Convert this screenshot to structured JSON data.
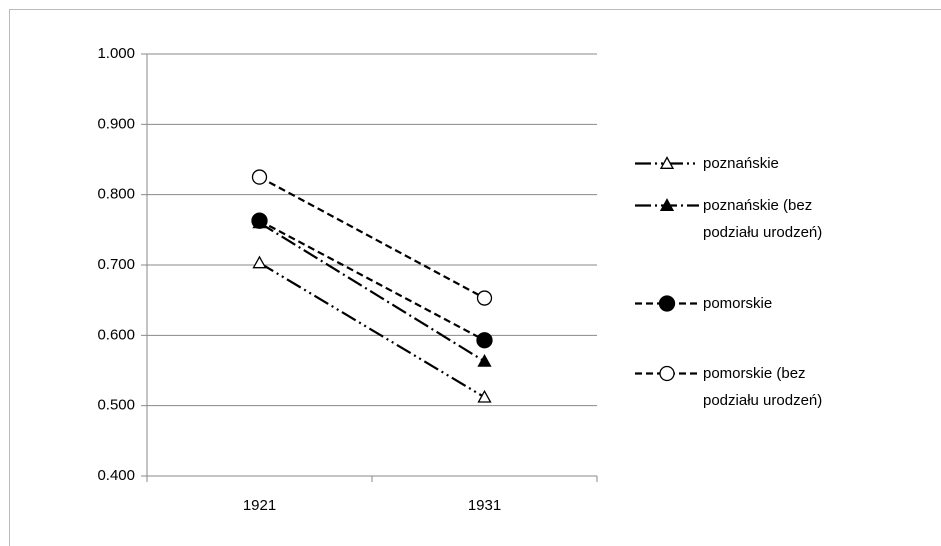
{
  "chart_data": {
    "type": "line",
    "categories": [
      "1921",
      "1931"
    ],
    "ylim": [
      0.4,
      1.0
    ],
    "yticks": [
      {
        "value": 0.4,
        "label": "0.400"
      },
      {
        "value": 0.5,
        "label": "0.500"
      },
      {
        "value": 0.6,
        "label": "0.600"
      },
      {
        "value": 0.7,
        "label": "0.700"
      },
      {
        "value": 0.8,
        "label": "0.800"
      },
      {
        "value": 0.9,
        "label": "0.900"
      },
      {
        "value": 1.0,
        "label": "1.000"
      }
    ],
    "grid": true,
    "legend": "right",
    "series": [
      {
        "name": "poznańskie",
        "color": "#000000",
        "dash": "16,4,2,4,2,4",
        "marker": "triangle-open",
        "values": [
          0.703,
          0.512
        ]
      },
      {
        "name": "poznańskie (bez podziału urodzeń)",
        "color": "#000000",
        "dash": "16,4,2,4",
        "marker": "triangle",
        "values": [
          0.76,
          0.563
        ]
      },
      {
        "name": "pomorskie",
        "color": "#000000",
        "dash": "7,4",
        "marker": "circle",
        "values": [
          0.763,
          0.593
        ]
      },
      {
        "name": "pomorskie (bez podziału urodzeń)",
        "color": "#000000",
        "dash": "7,4",
        "marker": "circle-open",
        "values": [
          0.825,
          0.653
        ]
      }
    ]
  }
}
